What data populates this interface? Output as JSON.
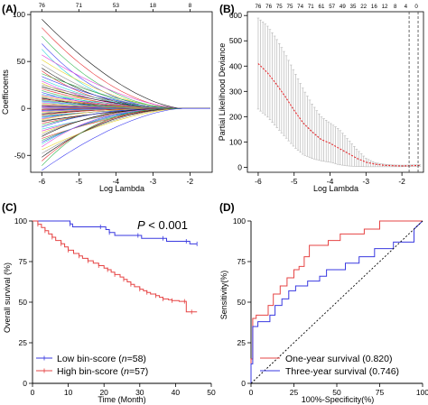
{
  "chart_data": [
    {
      "panel": "(A)",
      "type": "line",
      "xlabel": "Log Lambda",
      "ylabel": "Coefficoents",
      "x_ticks": [
        -6,
        -5,
        -4,
        -3,
        -2
      ],
      "y_ticks": [
        -50,
        0,
        50,
        100
      ],
      "top_ticks": [
        {
          "x": -6.0,
          "label": "76"
        },
        {
          "x": -5.0,
          "label": "71"
        },
        {
          "x": -4.0,
          "label": "53"
        },
        {
          "x": -3.0,
          "label": "18"
        },
        {
          "x": -2.0,
          "label": "8"
        }
      ],
      "xlim": [
        -6.3,
        -1.4
      ],
      "ylim": [
        -68,
        103
      ],
      "n_paths": 76,
      "x_zero": -2.2,
      "start_values": [
        95,
        86,
        77,
        69,
        63,
        57,
        52,
        47,
        43,
        40,
        37,
        34,
        31,
        29,
        27,
        25,
        23,
        21,
        19,
        17,
        15,
        14,
        13,
        12,
        11,
        10,
        9,
        8,
        7,
        6,
        5,
        4,
        3,
        3,
        2,
        2,
        1,
        1,
        0,
        0,
        -1,
        -1,
        -2,
        -2,
        -3,
        -3,
        -4,
        -5,
        -6,
        -7,
        -8,
        -9,
        -10,
        -11,
        -12,
        -13,
        -14,
        -16,
        -18,
        -20,
        -22,
        -24,
        -26,
        -28,
        -30,
        -32,
        -34,
        -36,
        -38,
        -41,
        -44,
        -48,
        -52,
        -56,
        -61,
        -66
      ],
      "grid": false,
      "legend": "none"
    },
    {
      "panel": "(B)",
      "type": "line",
      "xlabel": "Log Lambda",
      "ylabel": "Partial Likelihood Deviance",
      "x_ticks": [
        -6,
        -5,
        -4,
        -3,
        -2
      ],
      "y_ticks": [
        0,
        100,
        200,
        300,
        400,
        500,
        600
      ],
      "top_labels": [
        "76",
        "76",
        "75",
        "75",
        "74",
        "71",
        "61",
        "57",
        "49",
        "35",
        "22",
        "16",
        "12",
        "8",
        "4",
        "0"
      ],
      "xlim": [
        -6.3,
        -1.4
      ],
      "ylim": [
        -20,
        615
      ],
      "series": [
        {
          "x": [
            -6.0,
            -5.75,
            -5.5,
            -5.25,
            -5.0,
            -4.75,
            -4.5,
            -4.25,
            -4.0,
            -3.75,
            -3.5,
            -3.25,
            -3.0,
            -2.75,
            -2.5,
            -2.25,
            -2.0,
            -1.75,
            -1.5
          ],
          "values": [
            410,
            375,
            330,
            280,
            225,
            175,
            140,
            110,
            95,
            75,
            55,
            35,
            20,
            12,
            8,
            6,
            5,
            6,
            7
          ]
        },
        {
          "x": [
            -6.0,
            -5.75,
            -5.5,
            -5.25,
            -5.0,
            -4.75,
            -4.5,
            -4.25,
            -4.0,
            -3.75,
            -3.5,
            -3.25,
            -3.0,
            -2.75,
            -2.5,
            -2.25,
            -2.0,
            -1.75,
            -1.5
          ],
          "values": [
            590,
            560,
            510,
            450,
            380,
            310,
            250,
            200,
            175,
            150,
            110,
            70,
            35,
            18,
            12,
            9,
            8,
            9,
            10
          ]
        },
        {
          "x": [
            -6.0,
            -5.75,
            -5.5,
            -5.25,
            -5.0,
            -4.75,
            -4.5,
            -4.25,
            -4.0,
            -3.75,
            -3.5,
            -3.25,
            -3.0,
            -2.75,
            -2.5,
            -2.25,
            -2.0,
            -1.75,
            -1.5
          ],
          "values": [
            230,
            200,
            160,
            120,
            80,
            50,
            35,
            25,
            20,
            10,
            5,
            3,
            2,
            2,
            2,
            2,
            2,
            3,
            4
          ]
        }
      ],
      "vlines": [
        -1.8,
        -1.55
      ],
      "grid": false,
      "legend": "none"
    },
    {
      "panel": "(C)",
      "type": "line",
      "xlabel": "Time (Month)",
      "ylabel": "Overall survival (%)",
      "x_ticks": [
        0,
        10,
        20,
        30,
        40,
        50
      ],
      "y_ticks": [
        0,
        25,
        50,
        75,
        100
      ],
      "xlim": [
        0,
        50
      ],
      "ylim": [
        0,
        100
      ],
      "annotation_p": "P",
      "annotation_rest": " < 0.001",
      "series": [
        {
          "name": "Low bin-score (n=58)",
          "name_parts": [
            "Low bin-score (",
            "n",
            "=58)"
          ],
          "color": "#3a3ae0",
          "x": [
            0,
            10.5,
            11.2,
            19,
            20.5,
            21.5,
            23,
            29.5,
            30.5,
            36.5,
            37.5,
            43,
            44,
            46
          ],
          "values": [
            100,
            98.2,
            96.4,
            96.4,
            94.7,
            92.9,
            91.1,
            91.1,
            89.3,
            89.3,
            87.5,
            87.5,
            85.9,
            85.9
          ]
        },
        {
          "name": "High bin-score (n=57)",
          "name_parts": [
            "High bin-score (",
            "n",
            "=57)"
          ],
          "color": "#e64444",
          "x": [
            0,
            1.5,
            2.5,
            3.5,
            4.5,
            5.5,
            6.5,
            8,
            9,
            10,
            11.5,
            13,
            14,
            15.5,
            17,
            18.5,
            20,
            21,
            22,
            23,
            24.5,
            25.5,
            26.5,
            27.5,
            28.5,
            30,
            31,
            32,
            33,
            34.5,
            35.5,
            36.5,
            38,
            39,
            41,
            42.5,
            43,
            44.5,
            46
          ],
          "values": [
            100,
            98,
            96,
            94,
            92,
            90,
            88,
            86,
            84,
            82,
            80,
            78.5,
            77,
            75.5,
            74,
            72.5,
            71,
            70,
            68.5,
            67,
            65.5,
            64,
            62.5,
            61,
            59.5,
            58,
            57,
            56,
            55,
            54,
            53,
            52,
            51.5,
            51,
            50.5,
            50.5,
            44,
            44,
            44
          ]
        }
      ],
      "legend": "bottom-left"
    },
    {
      "panel": "(D)",
      "type": "line",
      "xlabel": "100%-Specificity(%)",
      "ylabel": "Sensitivity(%)",
      "x_ticks": [
        0,
        25,
        50,
        75,
        100
      ],
      "y_ticks": [
        0,
        25,
        50,
        75,
        100
      ],
      "xlim": [
        0,
        100
      ],
      "ylim": [
        0,
        100
      ],
      "series": [
        {
          "name": "One-year survival (0.820)",
          "color": "#e64444",
          "x": [
            0,
            0,
            1,
            1,
            3,
            3,
            10,
            10,
            13,
            13,
            17,
            17,
            21,
            21,
            25,
            25,
            28,
            28,
            31,
            31,
            34,
            34,
            45,
            45,
            52,
            52,
            66,
            66,
            75,
            75,
            100
          ],
          "values": [
            0,
            15,
            15,
            40,
            40,
            42,
            42,
            48,
            48,
            55,
            55,
            60,
            60,
            65,
            65,
            70,
            70,
            72,
            72,
            78,
            78,
            85,
            85,
            88,
            88,
            92,
            92,
            95,
            95,
            100,
            100
          ]
        },
        {
          "name": "Three-year survival (0.746)",
          "color": "#3a3ae0",
          "x": [
            0,
            0,
            1,
            1,
            4,
            4,
            11,
            11,
            14,
            14,
            18,
            18,
            22,
            22,
            26,
            26,
            33,
            33,
            40,
            40,
            44,
            44,
            55,
            55,
            63,
            63,
            72,
            72,
            83,
            83,
            95,
            95,
            100
          ],
          "values": [
            0,
            12,
            12,
            35,
            35,
            38,
            38,
            42,
            42,
            48,
            48,
            52,
            52,
            57,
            57,
            60,
            60,
            63,
            63,
            66,
            66,
            70,
            70,
            74,
            74,
            78,
            78,
            83,
            83,
            87,
            87,
            95,
            100
          ]
        },
        {
          "name": "",
          "color": "#000000",
          "dashed": true,
          "x": [
            0,
            100
          ],
          "values": [
            0,
            100
          ]
        }
      ],
      "legend": "bottom-right"
    }
  ],
  "panels": {
    "a": {
      "label": "(A)"
    },
    "b": {
      "label": "(B)"
    },
    "c": {
      "label": "(C)"
    },
    "d": {
      "label": "(D)"
    }
  }
}
